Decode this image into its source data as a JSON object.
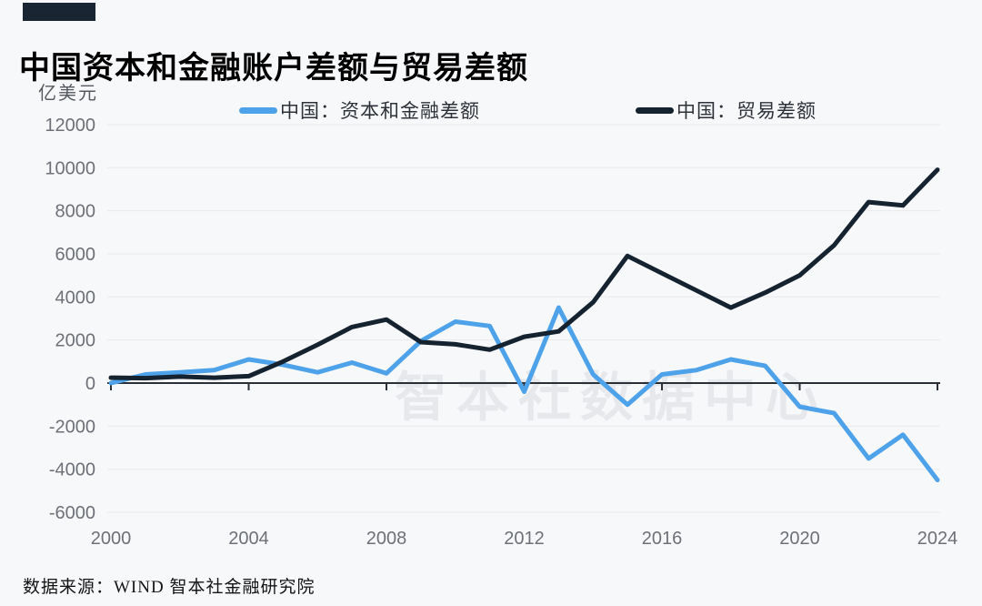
{
  "page": {
    "title": "中国资本和金融账户差额与贸易差额",
    "unit_label": "亿美元",
    "watermark": "智本社数据中心",
    "source": "数据来源：WIND 智本社金融研究院"
  },
  "colors": {
    "background": "#f7f8fa",
    "accent_bar": "#1a2533",
    "capital_series": "#4da2e9",
    "trade_series": "#15222f",
    "gridline": "#e8eaed",
    "axis_line": "#2b2f36",
    "tick_text": "#6d7076",
    "watermark": "#e7e8ec"
  },
  "legend": [
    {
      "label": "中国：资本和金融差额",
      "color": "#4da2e9"
    },
    {
      "label": "中国：贸易差额",
      "color": "#15222f"
    }
  ],
  "chart_data": {
    "type": "line",
    "title": "中国资本和金融账户差额与贸易差额",
    "xlabel": "",
    "ylabel": "亿美元",
    "ylim": [
      -6000,
      12000
    ],
    "ytick_step": 2000,
    "grid": "horizontal",
    "legend_position": "top",
    "x": [
      2000,
      2001,
      2002,
      2003,
      2004,
      2005,
      2006,
      2007,
      2008,
      2009,
      2010,
      2011,
      2012,
      2013,
      2014,
      2015,
      2016,
      2017,
      2018,
      2019,
      2020,
      2021,
      2022,
      2023,
      2024
    ],
    "xticks": [
      2000,
      2004,
      2008,
      2012,
      2016,
      2020,
      2024
    ],
    "series": [
      {
        "name": "中国：资本和金融差额",
        "key": "capital",
        "color": "#4da2e9",
        "values": [
          0,
          400,
          500,
          600,
          1100,
          850,
          500,
          950,
          450,
          1950,
          2850,
          2650,
          -400,
          3500,
          400,
          -1000,
          400,
          600,
          1100,
          800,
          -1100,
          -1400,
          -3500,
          -2400,
          -4500
        ]
      },
      {
        "name": "中国：贸易差额",
        "key": "trade",
        "color": "#15222f",
        "values": [
          250,
          230,
          300,
          250,
          320,
          1000,
          1780,
          2600,
          2950,
          1900,
          1800,
          1550,
          2150,
          2400,
          3750,
          5900,
          5100,
          4300,
          3500,
          4200,
          5000,
          6400,
          8400,
          8250,
          9900
        ]
      }
    ]
  }
}
